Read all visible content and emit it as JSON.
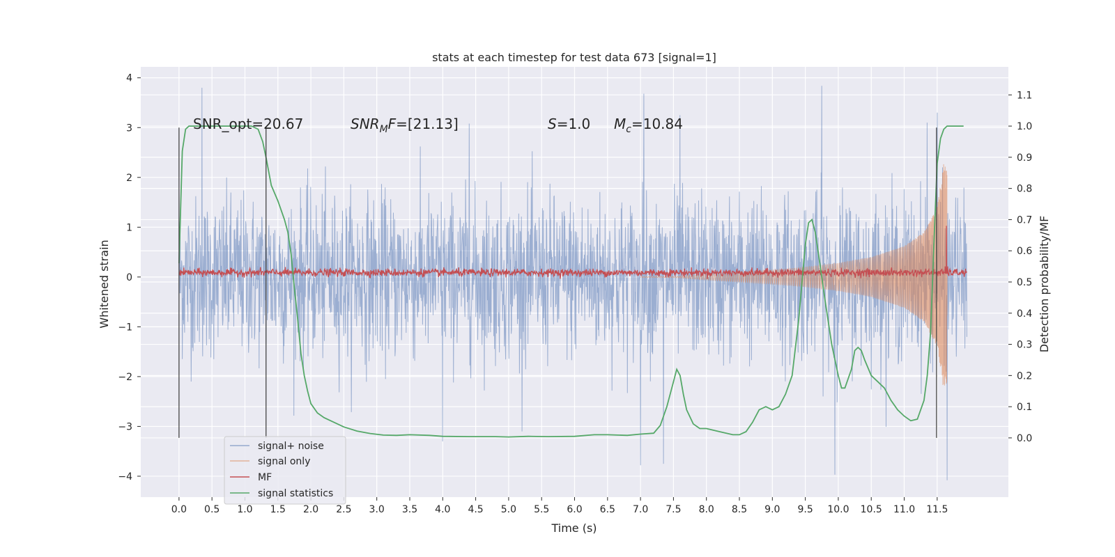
{
  "chart_data": {
    "type": "line",
    "title": "stats at each timestep for test data 673 [signal=1]",
    "xlabel": "Time (s)",
    "ylabel_left": "Whitened strain",
    "ylabel_right": "Detection probability/MF",
    "xlim": [
      -0.58,
      12.58
    ],
    "ylim_left": [
      -4.42,
      4.22
    ],
    "ylim_right": [
      -0.19,
      1.19
    ],
    "x_ticks": [
      0.0,
      0.5,
      1.0,
      1.5,
      2.0,
      2.5,
      3.0,
      3.5,
      4.0,
      4.5,
      5.0,
      5.5,
      6.0,
      6.5,
      7.0,
      7.5,
      8.0,
      8.5,
      9.0,
      9.5,
      10.0,
      10.5,
      11.0,
      11.5
    ],
    "x_tick_labels": [
      "0.0",
      "0.5",
      "1.0",
      "1.5",
      "2.0",
      "2.5",
      "3.0",
      "3.5",
      "4.0",
      "4.5",
      "5.0",
      "5.5",
      "6.0",
      "6.5",
      "7.0",
      "7.5",
      "8.0",
      "8.5",
      "9.0",
      "9.5",
      "10.0",
      "10.5",
      "11.0",
      "11.5"
    ],
    "y_left_ticks": [
      -4,
      -3,
      -2,
      -1,
      0,
      1,
      2,
      3,
      4
    ],
    "y_left_tick_labels": [
      "−4",
      "−3",
      "−2",
      "−1",
      "0",
      "1",
      "2",
      "3",
      "4"
    ],
    "y_right_ticks": [
      0.0,
      0.1,
      0.2,
      0.3,
      0.4,
      0.5,
      0.6,
      0.7,
      0.8,
      0.9,
      1.0,
      1.1
    ],
    "y_right_tick_labels": [
      "0.0",
      "0.1",
      "0.2",
      "0.3",
      "0.4",
      "0.5",
      "0.6",
      "0.7",
      "0.8",
      "0.9",
      "1.0",
      "1.1"
    ],
    "grid": true,
    "legend_position": "lower-left",
    "annotations": [
      {
        "text": "SNR_opt=20.67",
        "x": 0.2,
        "y": 3.0
      },
      {
        "text": "SNR_MF=[21.13]",
        "x": 2.6,
        "y": 3.0
      },
      {
        "text": "S=1.0",
        "x": 5.6,
        "y": 3.0
      },
      {
        "text": "M_c=10.84",
        "x": 6.6,
        "y": 3.0
      }
    ],
    "vertical_markers": [
      {
        "x": 0.0,
        "y0": -3.23,
        "y1": 3.0
      },
      {
        "x": 1.32,
        "y0": -3.23,
        "y1": 3.0
      },
      {
        "x": 11.49,
        "y0": -3.23,
        "y1": 3.0
      }
    ],
    "series": [
      {
        "name": "signal+ noise",
        "color": "#4c72b0",
        "axis": "left",
        "description_note": "dense white noise, std ~0.8, x from 0 to 11.95",
        "x_range": [
          0.0,
          11.95
        ],
        "amplitude": 0.8,
        "spikes": [
          {
            "x": 0.35,
            "y": 3.8
          },
          {
            "x": 7.05,
            "y": 3.68
          },
          {
            "x": 9.75,
            "y": 3.84
          },
          {
            "x": 11.5,
            "y": 3.3
          },
          {
            "x": 11.65,
            "y": -4.08
          },
          {
            "x": 9.95,
            "y": -3.97
          },
          {
            "x": 7.0,
            "y": -3.78
          },
          {
            "x": 7.35,
            "y": -3.75
          },
          {
            "x": 4.0,
            "y": -3.3
          },
          {
            "x": 4.4,
            "y": 3.08
          },
          {
            "x": 7.6,
            "y": 3.25
          },
          {
            "x": 11.35,
            "y": 3.1
          }
        ]
      },
      {
        "name": "signal only",
        "color": "#dd8452",
        "axis": "left",
        "description_note": "chirp signal, amplitude grows towards merger at ~11.6",
        "envelope_x": [
          7.5,
          8.0,
          8.5,
          9.0,
          9.5,
          10.0,
          10.5,
          11.0,
          11.3,
          11.5,
          11.6,
          11.65
        ],
        "envelope_y": [
          0.01,
          0.06,
          0.1,
          0.14,
          0.2,
          0.28,
          0.4,
          0.62,
          0.9,
          1.4,
          2.3,
          2.1
        ]
      },
      {
        "name": "MF",
        "color": "#c44e52",
        "axis": "right",
        "description_note": "matched filter output ~0.53 with small noise, spike near merger",
        "base": 0.53,
        "spike_x": [
          11.62,
          11.64,
          11.66
        ],
        "spike_y": [
          0.55,
          0.68,
          0.55
        ]
      },
      {
        "name": "signal statistics",
        "color": "#55a868",
        "axis": "right",
        "x": [
          0.0,
          0.05,
          0.1,
          0.15,
          0.25,
          0.4,
          0.6,
          0.8,
          1.0,
          1.1,
          1.2,
          1.27,
          1.32,
          1.4,
          1.5,
          1.6,
          1.65,
          1.7,
          1.75,
          1.8,
          1.85,
          1.9,
          1.95,
          2.0,
          2.1,
          2.2,
          2.3,
          2.5,
          2.7,
          2.9,
          3.1,
          3.3,
          3.5,
          3.8,
          4.0,
          4.4,
          4.8,
          5.0,
          5.3,
          5.6,
          6.0,
          6.3,
          6.5,
          6.8,
          7.0,
          7.2,
          7.3,
          7.4,
          7.5,
          7.55,
          7.6,
          7.65,
          7.7,
          7.8,
          7.9,
          8.0,
          8.2,
          8.4,
          8.5,
          8.6,
          8.7,
          8.8,
          8.9,
          9.0,
          9.1,
          9.2,
          9.3,
          9.4,
          9.5,
          9.55,
          9.6,
          9.65,
          9.7,
          9.8,
          9.9,
          10.0,
          10.05,
          10.1,
          10.2,
          10.25,
          10.3,
          10.35,
          10.4,
          10.5,
          10.6,
          10.7,
          10.8,
          10.9,
          11.0,
          11.1,
          11.2,
          11.3,
          11.35,
          11.4,
          11.45,
          11.5,
          11.55,
          11.6,
          11.65,
          11.7,
          11.8,
          11.9
        ],
        "y": [
          0.56,
          0.92,
          0.99,
          1.0,
          1.0,
          1.0,
          1.0,
          1.0,
          1.0,
          1.0,
          0.99,
          0.95,
          0.9,
          0.81,
          0.76,
          0.7,
          0.66,
          0.59,
          0.48,
          0.38,
          0.27,
          0.2,
          0.15,
          0.11,
          0.08,
          0.065,
          0.055,
          0.035,
          0.022,
          0.014,
          0.009,
          0.008,
          0.01,
          0.008,
          0.005,
          0.004,
          0.004,
          0.003,
          0.005,
          0.004,
          0.005,
          0.01,
          0.01,
          0.008,
          0.012,
          0.015,
          0.04,
          0.1,
          0.18,
          0.22,
          0.2,
          0.14,
          0.09,
          0.045,
          0.03,
          0.03,
          0.02,
          0.01,
          0.01,
          0.02,
          0.05,
          0.09,
          0.1,
          0.09,
          0.1,
          0.14,
          0.2,
          0.38,
          0.62,
          0.69,
          0.7,
          0.66,
          0.59,
          0.44,
          0.3,
          0.2,
          0.16,
          0.16,
          0.22,
          0.28,
          0.29,
          0.28,
          0.25,
          0.2,
          0.18,
          0.16,
          0.12,
          0.09,
          0.07,
          0.055,
          0.06,
          0.12,
          0.2,
          0.34,
          0.62,
          0.88,
          0.96,
          0.99,
          1.0,
          1.0,
          1.0,
          1.0
        ]
      }
    ]
  }
}
